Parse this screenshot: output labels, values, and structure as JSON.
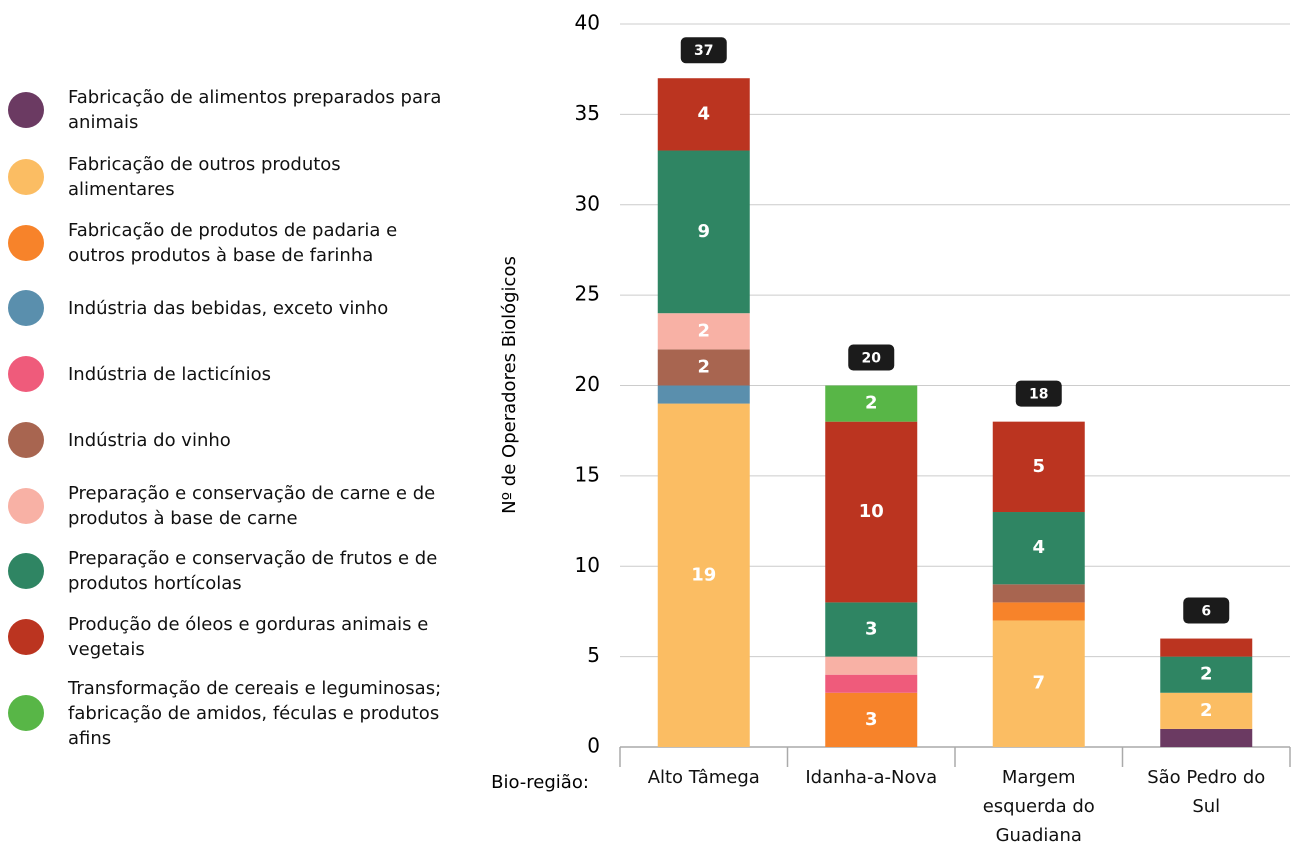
{
  "chart_data": {
    "type": "stacked_bar",
    "ylabel": "Nº de Operadores Biológicos",
    "xlabel": "Bio-região:",
    "categories": [
      "Alto Tâmega",
      "Idanha-a-Nova",
      "Margem esquerda do Guadiana",
      "São Pedro do Sul"
    ],
    "series": [
      {
        "name": "Fabricação de alimentos preparados para animais",
        "color": "#6b3a62",
        "values": [
          0,
          0,
          0,
          1
        ]
      },
      {
        "name": "Fabricação de outros produtos alimentares",
        "color": "#fbbd63",
        "values": [
          19,
          0,
          7,
          2
        ]
      },
      {
        "name": "Fabricação de produtos de padaria e outros produtos à base de farinha",
        "color": "#f7832a",
        "values": [
          0,
          3,
          1,
          0
        ]
      },
      {
        "name": "Indústria das bebidas, exceto vinho",
        "color": "#5a8fad",
        "values": [
          1,
          0,
          0,
          0
        ]
      },
      {
        "name": "Indústria de lacticínios",
        "color": "#ef5b7b",
        "values": [
          0,
          1,
          0,
          0
        ]
      },
      {
        "name": "Indústria do vinho",
        "color": "#a86550",
        "values": [
          2,
          0,
          1,
          0
        ]
      },
      {
        "name": "Preparação e conservação de carne e de produtos à base de carne",
        "color": "#f8b1a5",
        "values": [
          2,
          1,
          0,
          0
        ]
      },
      {
        "name": "Preparação e conservação de frutos e de produtos hortícolas",
        "color": "#2f8563",
        "values": [
          9,
          3,
          4,
          2
        ]
      },
      {
        "name": "Produção de óleos e gorduras animais e vegetais",
        "color": "#bb3420",
        "values": [
          4,
          10,
          5,
          1
        ]
      },
      {
        "name": "Transformação de cereais e leguminosas; fabricação de amidos, féculas e produtos afins",
        "color": "#58b647",
        "values": [
          0,
          2,
          0,
          0
        ]
      }
    ],
    "totals": [
      37,
      20,
      18,
      6
    ],
    "ylim": [
      0,
      40
    ],
    "yticks": [
      0,
      5,
      10,
      15,
      20,
      25,
      30,
      35,
      40
    ],
    "grid": true,
    "legend": "left"
  }
}
